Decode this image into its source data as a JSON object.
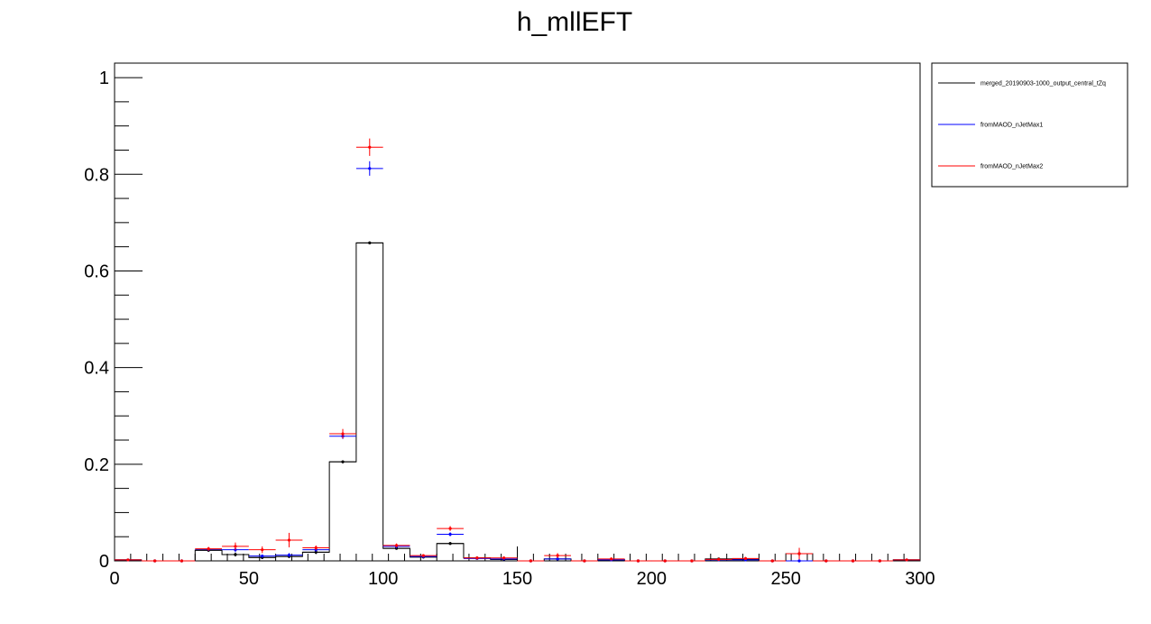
{
  "chart_data": {
    "type": "scatter",
    "title": "h_mllEFT",
    "xlim": [
      0,
      300
    ],
    "ylim": [
      0,
      1.03
    ],
    "bin_width": 10,
    "x_ticks": [
      0,
      50,
      100,
      150,
      200,
      250,
      300
    ],
    "x_tick_labels": [
      "0",
      "50",
      "100",
      "150",
      "200",
      "250",
      "300"
    ],
    "y_ticks": [
      0,
      0.2,
      0.4,
      0.6,
      0.8,
      1
    ],
    "y_tick_labels": [
      "0",
      "0.2",
      "0.4",
      "0.6",
      "0.8",
      "1"
    ],
    "legend_position": "outside-top-right",
    "x": [
      5,
      15,
      25,
      35,
      45,
      55,
      65,
      75,
      85,
      95,
      105,
      115,
      125,
      135,
      145,
      155,
      165,
      175,
      185,
      195,
      205,
      215,
      225,
      235,
      245,
      255,
      265,
      275,
      285,
      295
    ],
    "series": [
      {
        "name": "merged_20190903-1000_output_central_tZq",
        "color": "#000000",
        "style": "histogram",
        "values": [
          0.002,
          0,
          0,
          0.022,
          0.013,
          0.007,
          0.009,
          0.018,
          0.205,
          0.658,
          0.026,
          0.008,
          0.036,
          0.006,
          0.003,
          0,
          0.004,
          0,
          0.002,
          0,
          0,
          0,
          0.004,
          0.003,
          0,
          0.015,
          0,
          0,
          0,
          0.002
        ],
        "errors": [
          0.001,
          0,
          0,
          0.003,
          0.004,
          0.003,
          0.003,
          0.004,
          0.003,
          0.003,
          0.003,
          0.003,
          0.003,
          0.003,
          0.002,
          0,
          0.002,
          0,
          0.002,
          0,
          0,
          0,
          0.002,
          0.002,
          0,
          0.006,
          0,
          0,
          0,
          0.002
        ]
      },
      {
        "name": "fromMAOD_nJetMax1",
        "color": "#0000ff",
        "style": "points",
        "values": [
          0.002,
          0,
          0,
          0.024,
          0.023,
          0.01,
          0.012,
          0.023,
          0.258,
          0.812,
          0.03,
          0.009,
          0.055,
          0.005,
          0.004,
          0,
          0.004,
          0,
          0.002,
          0,
          0,
          0,
          0.002,
          0.002,
          0,
          0,
          0,
          0,
          0,
          0.002
        ],
        "errors": [
          0.001,
          0,
          0,
          0.003,
          0.005,
          0.003,
          0.004,
          0.004,
          0.006,
          0.015,
          0.004,
          0.003,
          0.004,
          0.002,
          0.002,
          0,
          0.002,
          0,
          0.001,
          0,
          0,
          0,
          0.001,
          0.001,
          0,
          0,
          0,
          0,
          0,
          0.001
        ]
      },
      {
        "name": "fromMAOD_nJetMax2",
        "color": "#ff0000",
        "style": "points",
        "values": [
          0.002,
          0,
          0,
          0.025,
          0.03,
          0.023,
          0.043,
          0.027,
          0.263,
          0.856,
          0.032,
          0.011,
          0.067,
          0.006,
          0.006,
          0,
          0.011,
          0,
          0.004,
          0,
          0,
          0,
          0.003,
          0.005,
          0,
          0.015,
          0,
          0,
          0,
          0.002
        ],
        "errors": [
          0.001,
          0,
          0,
          0.004,
          0.008,
          0.007,
          0.015,
          0.005,
          0.01,
          0.018,
          0.004,
          0.003,
          0.005,
          0.003,
          0.003,
          0,
          0.005,
          0,
          0.003,
          0,
          0,
          0,
          0.002,
          0.003,
          0,
          0.012,
          0,
          0,
          0,
          0.002
        ]
      }
    ]
  }
}
